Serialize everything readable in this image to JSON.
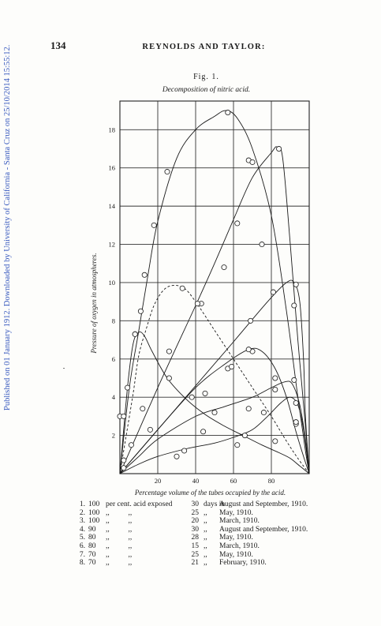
{
  "side_note": "Published on 01 January 1912. Downloaded by University of California - Santa Cruz on 25/10/2014 15:55:12.",
  "page": {
    "number": "134",
    "header": "REYNOLDS AND TAYLOR:",
    "figure_label": "Fig. 1.",
    "figure_caption": "Decomposition of nitric acid."
  },
  "chart_data": {
    "type": "line",
    "title": "Decomposition of nitric acid.",
    "xlabel": "Percentage volume of the tubes occupied by the acid.",
    "ylabel": "Pressure of oxygen in atmospheres.",
    "xlim": [
      0,
      100
    ],
    "ylim": [
      0,
      19.5
    ],
    "x_ticks": [
      20,
      40,
      60,
      80
    ],
    "y_ticks": [
      2,
      4,
      6,
      8,
      10,
      12,
      14,
      16,
      18
    ],
    "grid": true,
    "series": [
      {
        "curve": [
          [
            0,
            0
          ],
          [
            5,
            4.5
          ],
          [
            10,
            7.5
          ],
          [
            15,
            10.5
          ],
          [
            20,
            13.2
          ],
          [
            30,
            16.5
          ],
          [
            40,
            18.0
          ],
          [
            50,
            18.7
          ],
          [
            56,
            19.0
          ],
          [
            62,
            18.6
          ],
          [
            70,
            17.0
          ],
          [
            80,
            13.5
          ],
          [
            88,
            8.5
          ],
          [
            94,
            4.0
          ],
          [
            98,
            1.2
          ],
          [
            100,
            0
          ]
        ],
        "points": [
          [
            4,
            4.5
          ],
          [
            8,
            7.3
          ],
          [
            11,
            8.5
          ],
          [
            13,
            10.4
          ],
          [
            18,
            13.0
          ],
          [
            25,
            15.8
          ],
          [
            57,
            18.9
          ],
          [
            68,
            16.4
          ]
        ]
      },
      {
        "curve": [
          [
            0,
            0
          ],
          [
            20,
            4.5
          ],
          [
            40,
            8.8
          ],
          [
            50,
            11.0
          ],
          [
            60,
            13.3
          ],
          [
            70,
            15.5
          ],
          [
            80,
            16.8
          ],
          [
            83,
            17.1
          ],
          [
            86,
            16.5
          ],
          [
            90,
            12.0
          ],
          [
            94,
            7.0
          ],
          [
            98,
            2.5
          ],
          [
            100,
            0
          ]
        ],
        "points": [
          [
            43,
            8.9
          ],
          [
            55,
            10.8
          ],
          [
            62,
            13.1
          ],
          [
            70,
            16.3
          ],
          [
            75,
            12.0
          ],
          [
            84,
            17.0
          ]
        ]
      },
      {
        "curve": [
          [
            0,
            0
          ],
          [
            3,
            1.8
          ],
          [
            7,
            4.2
          ],
          [
            10,
            6.2
          ],
          [
            14,
            7.6
          ],
          [
            18,
            8.8
          ],
          [
            23,
            9.6
          ],
          [
            28,
            9.85
          ],
          [
            34,
            9.7
          ],
          [
            40,
            9.0
          ],
          [
            50,
            7.5
          ],
          [
            60,
            6.0
          ],
          [
            70,
            4.5
          ],
          [
            80,
            3.0
          ],
          [
            88,
            1.7
          ],
          [
            94,
            0.8
          ],
          [
            100,
            0
          ]
        ],
        "points": [
          [
            0,
            3.0
          ],
          [
            2,
            3.0
          ],
          [
            33,
            9.7
          ],
          [
            41,
            8.9
          ],
          [
            70,
            6.4
          ]
        ]
      },
      {
        "curve": [
          [
            0,
            0
          ],
          [
            20,
            2.3
          ],
          [
            40,
            4.6
          ],
          [
            60,
            6.9
          ],
          [
            78,
            9.0
          ],
          [
            88,
            10.0
          ],
          [
            92,
            10.0
          ],
          [
            95,
            9.0
          ],
          [
            97,
            6.0
          ],
          [
            98,
            3.0
          ],
          [
            100,
            0
          ]
        ],
        "points": [
          [
            26,
            6.4
          ],
          [
            45,
            4.2
          ],
          [
            69,
            8.0
          ],
          [
            81,
            9.5
          ],
          [
            93,
            9.9
          ],
          [
            92,
            8.8
          ]
        ]
      },
      {
        "curve": [
          [
            0,
            0
          ],
          [
            4,
            4.5
          ],
          [
            7,
            6.8
          ],
          [
            10,
            7.4
          ],
          [
            13,
            7.2
          ],
          [
            17,
            6.4
          ],
          [
            25,
            5.0
          ],
          [
            35,
            3.9
          ],
          [
            45,
            3.1
          ],
          [
            55,
            2.5
          ],
          [
            65,
            2.0
          ],
          [
            75,
            1.5
          ],
          [
            84,
            1.1
          ],
          [
            90,
            0.8
          ],
          [
            95,
            0.4
          ],
          [
            100,
            0
          ]
        ],
        "points": [
          [
            8,
            7.3
          ],
          [
            26,
            5.0
          ],
          [
            50,
            3.2
          ],
          [
            82,
            1.7
          ]
        ]
      },
      {
        "curve": [
          [
            0,
            0
          ],
          [
            20,
            2.3
          ],
          [
            40,
            4.5
          ],
          [
            55,
            5.7
          ],
          [
            68,
            6.5
          ],
          [
            75,
            6.4
          ],
          [
            82,
            5.5
          ],
          [
            88,
            4.0
          ],
          [
            93,
            2.2
          ],
          [
            97,
            0.9
          ],
          [
            100,
            0
          ]
        ],
        "points": [
          [
            12,
            3.4
          ],
          [
            38,
            4.0
          ],
          [
            57,
            5.5
          ],
          [
            59,
            5.6
          ],
          [
            68,
            6.5
          ],
          [
            82,
            5.0
          ],
          [
            93,
            2.6
          ]
        ]
      },
      {
        "curve": [
          [
            0,
            0
          ],
          [
            10,
            0.9
          ],
          [
            20,
            1.8
          ],
          [
            40,
            3.0
          ],
          [
            55,
            3.5
          ],
          [
            70,
            4.0
          ],
          [
            80,
            4.5
          ],
          [
            87,
            4.8
          ],
          [
            91,
            4.7
          ],
          [
            95,
            3.6
          ],
          [
            98,
            1.8
          ],
          [
            100,
            0
          ]
        ],
        "points": [
          [
            2,
            0.7
          ],
          [
            6,
            1.5
          ],
          [
            16,
            2.3
          ],
          [
            44,
            2.2
          ],
          [
            68,
            3.4
          ],
          [
            82,
            4.4
          ],
          [
            92,
            4.9
          ],
          [
            93,
            2.7
          ]
        ]
      },
      {
        "curve": [
          [
            0,
            0
          ],
          [
            10,
            0.5
          ],
          [
            20,
            0.9
          ],
          [
            35,
            1.3
          ],
          [
            50,
            1.6
          ],
          [
            60,
            1.9
          ],
          [
            70,
            2.3
          ],
          [
            78,
            3.0
          ],
          [
            85,
            3.7
          ],
          [
            90,
            4.0
          ],
          [
            94,
            3.6
          ],
          [
            97,
            2.3
          ],
          [
            100,
            0
          ]
        ],
        "points": [
          [
            2,
            0.3
          ],
          [
            30,
            0.9
          ],
          [
            34,
            1.2
          ],
          [
            62,
            1.5
          ],
          [
            66,
            2.0
          ],
          [
            76,
            3.2
          ],
          [
            93,
            3.7
          ]
        ]
      }
    ]
  },
  "legend": [
    {
      "num": "1.",
      "pct": "100",
      "rest": "per cent. acid exposed",
      "days": "30",
      "in": "days in",
      "when": "August and September, 1910."
    },
    {
      "num": "2.",
      "pct": "100",
      "rest": ",,          ,,",
      "days": "25",
      "in": ",,",
      "when": "May, 1910."
    },
    {
      "num": "3.",
      "pct": "100",
      "rest": ",,          ,,",
      "days": "20",
      "in": ",,",
      "when": "March, 1910."
    },
    {
      "num": "4.",
      "pct": "90",
      "rest": ",,          ,,",
      "days": "30",
      "in": ",,",
      "when": "August and September, 1910."
    },
    {
      "num": "5.",
      "pct": "80",
      "rest": ",,          ,,",
      "days": "28",
      "in": ",,",
      "when": "May, 1910."
    },
    {
      "num": "6.",
      "pct": "80",
      "rest": ",,          ,,",
      "days": "15",
      "in": ",,",
      "when": "March, 1910."
    },
    {
      "num": "7.",
      "pct": "70",
      "rest": ",,          ,,",
      "days": "25",
      "in": ",,",
      "when": "May, 1910."
    },
    {
      "num": "8.",
      "pct": "70",
      "rest": ",,          ,,",
      "days": "21",
      "in": ",,",
      "when": "February, 1910."
    }
  ]
}
